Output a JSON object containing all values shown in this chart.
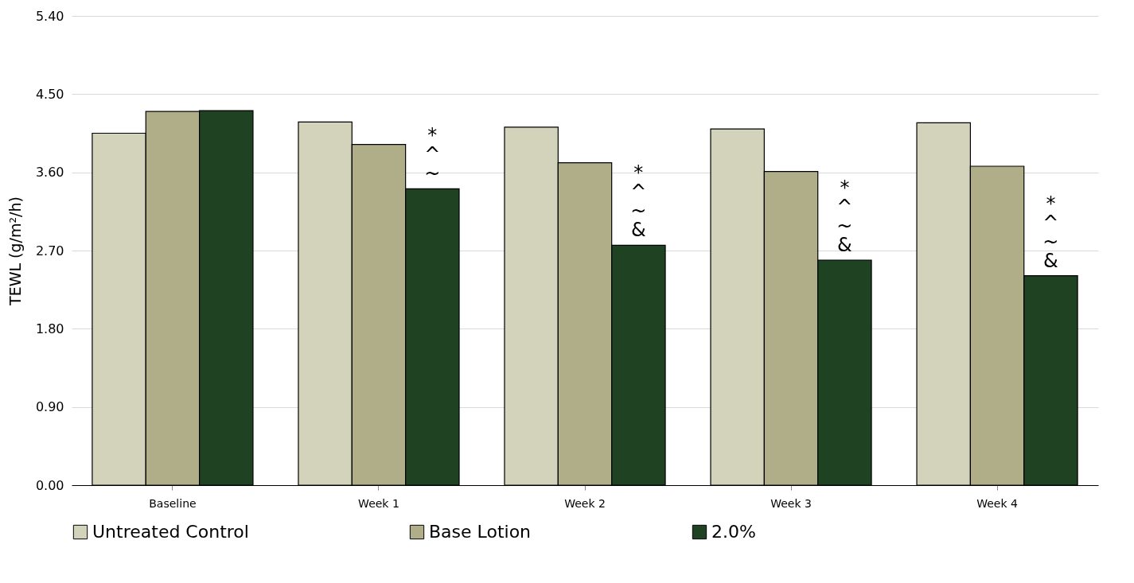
{
  "chart_data": {
    "type": "bar",
    "ylabel": "TEWL (g/m²/h)",
    "categories": [
      "Baseline",
      "Week 1",
      "Week 2",
      "Week 3",
      "Week 4"
    ],
    "series": [
      {
        "name": "Untreated Control",
        "color": "#d3d3bc",
        "values": [
          4.05,
          4.18,
          4.12,
          4.1,
          4.17
        ]
      },
      {
        "name": "Base Lotion",
        "color": "#b0ae88",
        "values": [
          4.3,
          3.92,
          3.71,
          3.61,
          3.67
        ]
      },
      {
        "name": "2.0%",
        "color": "#1e4222",
        "values": [
          4.31,
          3.41,
          2.76,
          2.59,
          2.41
        ],
        "value_labels": [
          null,
          "*\n^\n~",
          "*\n^\n~\n&",
          "*\n^\n~\n&",
          "*\n^\n~\n&"
        ]
      }
    ],
    "ylim": [
      0,
      5.4
    ],
    "yticks": [
      {
        "value": 0,
        "label": "0.00"
      },
      {
        "value": 0.9,
        "label": "0.90"
      },
      {
        "value": 1.8,
        "label": "1.80"
      },
      {
        "value": 2.7,
        "label": "2.70"
      },
      {
        "value": 3.6,
        "label": "3.60"
      },
      {
        "value": 4.5,
        "label": "4.50"
      },
      {
        "value": 5.4,
        "label": "5.40"
      }
    ],
    "grid": "y",
    "legend": "bottom"
  }
}
